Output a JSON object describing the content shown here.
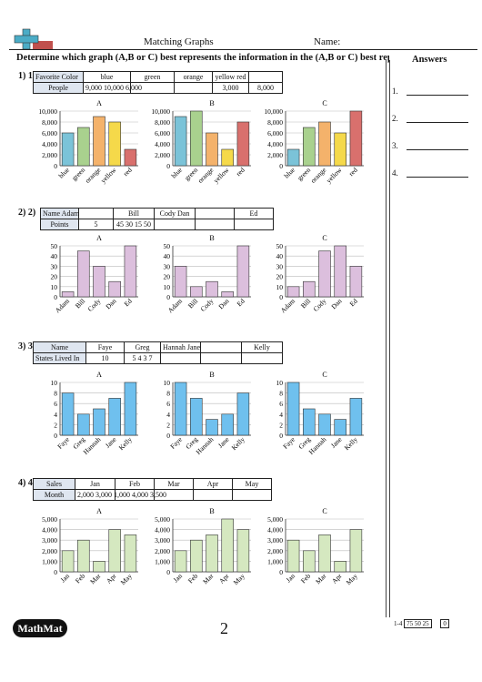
{
  "header": {
    "title": "Matching Graphs",
    "name_label": "Name:"
  },
  "instructions": "Determine which graph (A,B or C) best represents the information in the  (A,B or C) best represents the information",
  "answers_header": "Answers",
  "answer_numbers": [
    "1.",
    "2.",
    "3.",
    "4."
  ],
  "graph_letters": [
    "A",
    "B",
    "C"
  ],
  "questions": [
    {
      "number": "1) 1)",
      "table": [
        [
          "Favorite Color",
          "blue",
          "green",
          "orange",
          "yellow red",
          ""
        ],
        [
          "People",
          "9,000 10,000 6,000",
          "",
          "",
          "3,000",
          "8,000"
        ]
      ],
      "chart_data": {
        "type": "bar",
        "categories": [
          "blue",
          "green",
          "orange",
          "yellow",
          "red"
        ],
        "ylim": [
          0,
          10000
        ],
        "yticks": [
          "0",
          "2,000",
          "4,000",
          "6,000",
          "8,000",
          "10,000"
        ],
        "colors": [
          "#7bc3d8",
          "#a9d18e",
          "#f4b26b",
          "#f5d94a",
          "#d9706d"
        ],
        "graphs": [
          {
            "values": [
              6000,
              7000,
              9000,
              8000,
              3000
            ]
          },
          {
            "values": [
              9000,
              10000,
              6000,
              3000,
              8000
            ]
          },
          {
            "values": [
              3000,
              7000,
              8000,
              6000,
              10000
            ]
          }
        ]
      }
    },
    {
      "number": "2) 2)",
      "table": [
        [
          "Name Adam",
          "",
          "Bill",
          "Cody Dan",
          "",
          "Ed"
        ],
        [
          "Points",
          "5",
          "45 30 15 50",
          "",
          "",
          ""
        ]
      ],
      "chart_data": {
        "type": "bar",
        "categories": [
          "Adam",
          "Bill",
          "Cody",
          "Dan",
          "Ed"
        ],
        "ylim": [
          0,
          50
        ],
        "yticks": [
          "0",
          "10",
          "20",
          "30",
          "40",
          "50"
        ],
        "colors": [
          "#dcbfdd",
          "#dcbfdd",
          "#dcbfdd",
          "#dcbfdd",
          "#dcbfdd"
        ],
        "graphs": [
          {
            "values": [
              5,
              45,
              30,
              15,
              50
            ]
          },
          {
            "values": [
              30,
              10,
              15,
              5,
              50
            ]
          },
          {
            "values": [
              10,
              15,
              45,
              50,
              30
            ]
          }
        ]
      }
    },
    {
      "number": "3) 3)",
      "table": [
        [
          "Name",
          "Faye",
          "Greg",
          "Hannah Jane",
          "",
          "Kelly"
        ],
        [
          "States Lived In",
          "10",
          "5 4 3 7",
          "",
          "",
          ""
        ]
      ],
      "chart_data": {
        "type": "bar",
        "categories": [
          "Faye",
          "Greg",
          "Hannah",
          "Jane",
          "Kelly"
        ],
        "ylim": [
          0,
          10
        ],
        "yticks": [
          "0",
          "2",
          "4",
          "6",
          "8",
          "10"
        ],
        "colors": [
          "#6fc0ee",
          "#6fc0ee",
          "#6fc0ee",
          "#6fc0ee",
          "#6fc0ee"
        ],
        "graphs": [
          {
            "values": [
              8,
              4,
              5,
              7,
              10
            ]
          },
          {
            "values": [
              10,
              7,
              3,
              4,
              8
            ]
          },
          {
            "values": [
              10,
              5,
              4,
              3,
              7
            ]
          }
        ]
      }
    },
    {
      "number": "4) 4)",
      "table": [
        [
          "Sales",
          "Jan",
          "Feb",
          "Mar",
          "Apr",
          "May"
        ],
        [
          "Month",
          "2,000 3,000 1,000 4,000 3,500",
          "",
          "",
          "",
          ""
        ]
      ],
      "chart_data": {
        "type": "bar",
        "categories": [
          "Jan",
          "Feb",
          "Mar",
          "Apr",
          "May"
        ],
        "ylim": [
          0,
          5000
        ],
        "yticks": [
          "0",
          "1,000",
          "2,000",
          "3,000",
          "4,000",
          "5,000"
        ],
        "colors": [
          "#d5e8c0",
          "#d5e8c0",
          "#d5e8c0",
          "#d5e8c0",
          "#d5e8c0"
        ],
        "graphs": [
          {
            "values": [
              2000,
              3000,
              1000,
              4000,
              3500
            ]
          },
          {
            "values": [
              2000,
              3000,
              3500,
              5000,
              4000
            ]
          },
          {
            "values": [
              3000,
              2000,
              3500,
              1000,
              4000
            ]
          }
        ]
      }
    }
  ],
  "footer": {
    "logo": "MathMat",
    "page": "2",
    "range": "1-4",
    "scores": "75 50 25",
    "zero": "0"
  }
}
